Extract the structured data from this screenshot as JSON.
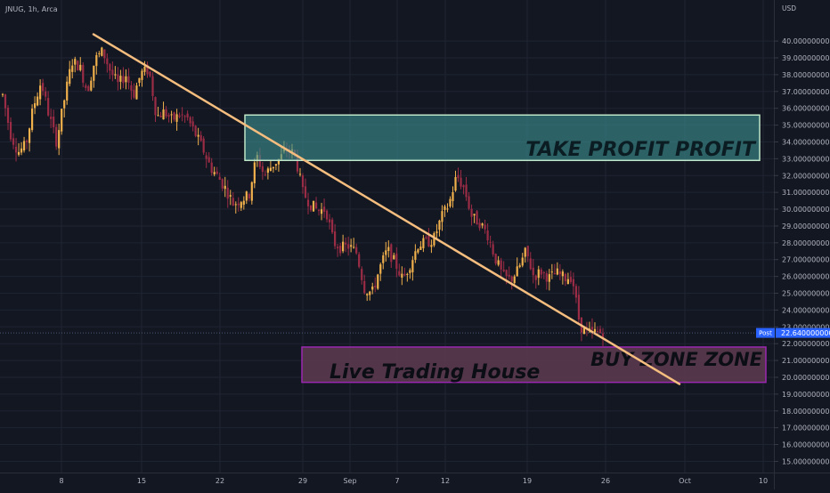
{
  "header": {
    "symbol": "JNUG, 1h, Arca"
  },
  "axis": {
    "currency": "USD"
  },
  "price_badge": {
    "label": "Post",
    "value": "22.640000000"
  },
  "zones": {
    "take_profit": {
      "label": "TAKE PROFIT PROFIT",
      "top": 35.6,
      "bottom": 32.9
    },
    "buy": {
      "label": "BUY ZONE ZONE",
      "top": 21.8,
      "bottom": 19.7
    },
    "watermark": "Live Trading House"
  },
  "colors": {
    "background": "#131722",
    "bull": "#f0b04c",
    "bear": "#9b2c45",
    "trendline": "#f5bd7e",
    "take_profit_fill": "#3c8f8f",
    "take_profit_border": "#bfe6c8",
    "buy_fill": "#5e3b50",
    "buy_border": "#9c27b0",
    "badge": "#2962ff"
  },
  "chart_data": {
    "type": "candlestick",
    "title": "JNUG, 1h, Arca",
    "ylabel": "USD",
    "ylim": [
      14.6,
      41.7
    ],
    "y_ticks": [
      "40.000000000",
      "39.000000000",
      "38.000000000",
      "37.000000000",
      "36.000000000",
      "35.000000000",
      "34.000000000",
      "33.000000000",
      "32.000000000",
      "31.000000000",
      "30.000000000",
      "29.000000000",
      "28.000000000",
      "27.000000000",
      "26.000000000",
      "25.000000000",
      "24.000000000",
      "23.000000000",
      "22.000000000",
      "21.000000000",
      "20.000000000",
      "19.000000000",
      "18.000000000",
      "17.000000000",
      "16.000000000",
      "15.000000000"
    ],
    "x_ticks": [
      "8",
      "15",
      "22",
      "29",
      "Sep",
      "7",
      "12",
      "19",
      "26",
      "Oct",
      "10"
    ],
    "grid": true,
    "last_price": 22.64,
    "trendline": {
      "from": {
        "date": "Aug 10",
        "price": 40.4
      },
      "to": {
        "date": "Sep 29",
        "price": 19.6
      }
    },
    "price_path": [
      36.8,
      34.5,
      33.4,
      33.8,
      36.1,
      37.6,
      35.6,
      34.0,
      36.5,
      38.8,
      38.5,
      37.0,
      38.9,
      39.4,
      38.2,
      37.4,
      38.0,
      36.8,
      38.1,
      38.3,
      35.5,
      35.8,
      35.3,
      35.6,
      35.4,
      34.5,
      33.6,
      32.5,
      31.9,
      31.2,
      30.3,
      30.6,
      30.8,
      33.2,
      32.0,
      32.6,
      33.0,
      33.6,
      33.2,
      31.0,
      30.3,
      29.9,
      30.0,
      28.0,
      27.7,
      27.8,
      27.4,
      25.3,
      25.0,
      26.5,
      27.6,
      26.8,
      25.8,
      26.8,
      27.9,
      28.0,
      28.2,
      29.5,
      30.3,
      32.0,
      31.2,
      29.5,
      29.2,
      28.5,
      27.1,
      26.0,
      25.8,
      26.4,
      27.5,
      26.0,
      26.3,
      25.9,
      26.2,
      25.9,
      26.0,
      23.1,
      22.6,
      22.7,
      22.64
    ]
  }
}
